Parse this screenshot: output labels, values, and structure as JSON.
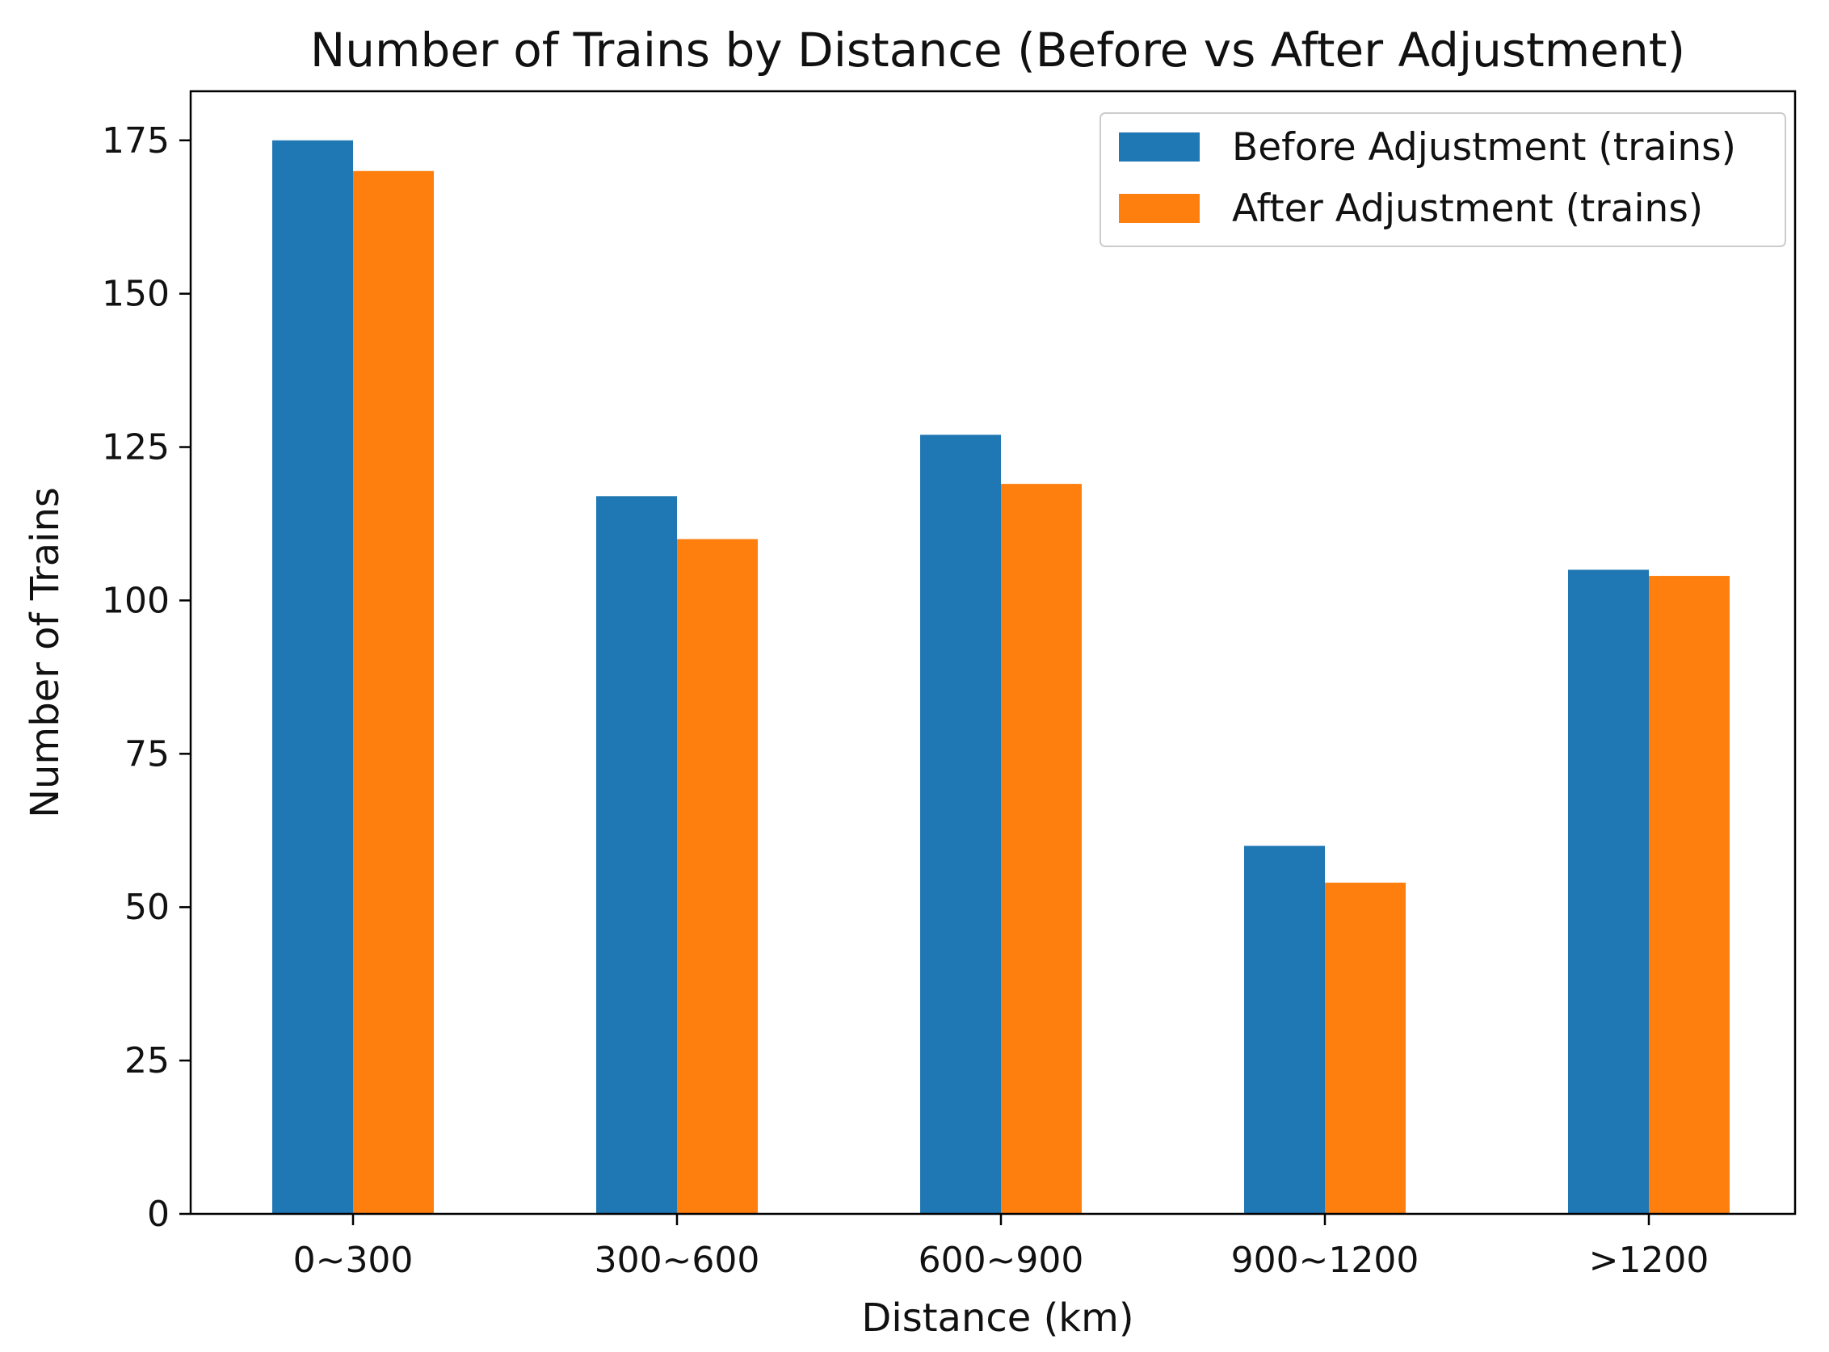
{
  "chart_data": {
    "type": "bar",
    "title": "Number of Trains by Distance (Before vs After Adjustment)",
    "xlabel": "Distance (km)",
    "ylabel": "Number of Trains",
    "categories": [
      "0~300",
      "300~600",
      "600~900",
      "900~1200",
      ">1200"
    ],
    "series": [
      {
        "name": "Before Adjustment (trains)",
        "color": "#1f77b4",
        "values": [
          175,
          117,
          127,
          60,
          105
        ]
      },
      {
        "name": "After Adjustment (trains)",
        "color": "#ff7f0e",
        "values": [
          170,
          110,
          119,
          54,
          104
        ]
      }
    ],
    "ylim": [
      0,
      183
    ],
    "yticks": [
      0,
      25,
      50,
      75,
      100,
      125,
      150,
      175
    ],
    "grid": false,
    "legend": "top-right"
  }
}
